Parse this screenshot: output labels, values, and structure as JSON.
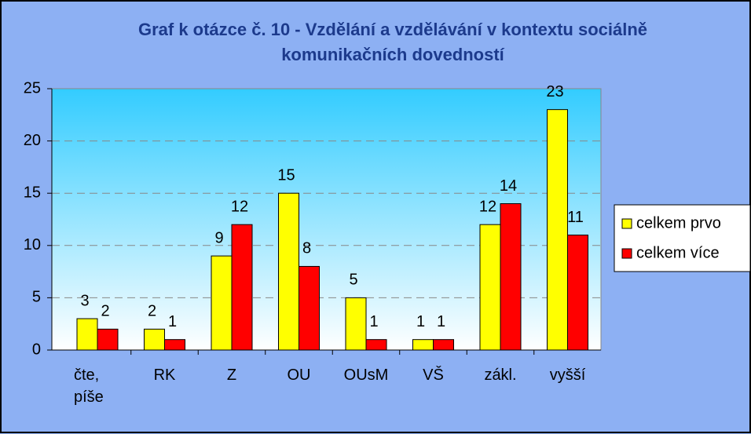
{
  "chart_data": {
    "type": "bar",
    "title": "Graf k otázce č. 10 - Vzdělání a vzdělávání v kontextu sociálně komunikačních dovedností",
    "categories": [
      "čte, píše",
      "RK",
      "Z",
      "OU",
      "OUsM",
      "VŠ",
      "zákl.",
      "vyšší"
    ],
    "series": [
      {
        "name": "celkem prvo",
        "color": "#ffff00",
        "values": [
          3,
          2,
          9,
          15,
          5,
          1,
          12,
          23
        ]
      },
      {
        "name": "celkem více",
        "color": "#ff0000",
        "values": [
          2,
          1,
          12,
          8,
          1,
          1,
          14,
          11
        ]
      }
    ],
    "ylim": [
      0,
      25
    ],
    "yticks": [
      0,
      5,
      10,
      15,
      20,
      25
    ],
    "grid": true,
    "legend": "right"
  }
}
